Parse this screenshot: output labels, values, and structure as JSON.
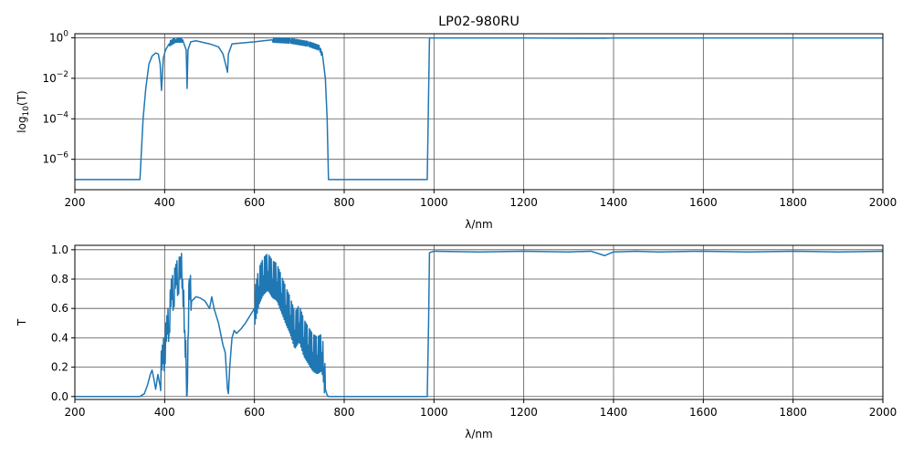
{
  "title": "LP02-980RU",
  "colors": {
    "series": "#1f77b4",
    "grid": "#555555",
    "axes": "#000000"
  },
  "chart_data": [
    {
      "type": "line",
      "title": "LP02-980RU",
      "xlabel": "λ/nm",
      "ylabel_parts": {
        "base": "log",
        "sub": "10",
        "arg": "(T)"
      },
      "yscale": "log",
      "xlim": [
        200,
        2000
      ],
      "ylim_log10": [
        -7.5,
        0.2
      ],
      "xticks": [
        200,
        400,
        600,
        800,
        1000,
        1200,
        1400,
        1600,
        1800,
        2000
      ],
      "yticks_log10": [
        -6,
        -4,
        -2,
        0
      ],
      "ytick_labels": [
        {
          "base": "10",
          "exp": "−6"
        },
        {
          "base": "10",
          "exp": "−4"
        },
        {
          "base": "10",
          "exp": "−2"
        },
        {
          "base": "10",
          "exp": "0"
        }
      ],
      "grid": true,
      "legend": "none",
      "series": [
        {
          "name": "",
          "x": [
            200,
            345,
            352,
            358,
            365,
            372,
            380,
            386,
            390,
            393,
            397,
            402,
            410,
            425,
            440,
            448,
            450,
            452,
            458,
            470,
            480,
            500,
            520,
            530,
            538,
            540,
            542,
            550,
            600,
            640,
            680,
            720,
            745,
            752,
            758,
            762,
            765,
            770,
            985,
            990,
            1000,
            1200,
            1380,
            1400,
            1600,
            1800,
            2000
          ],
          "y_log10": [
            -7,
            -7,
            -4,
            -2.5,
            -1.3,
            -0.9,
            -0.75,
            -0.8,
            -1.3,
            -2.6,
            -1.0,
            -0.6,
            -0.3,
            -0.1,
            -0.1,
            -0.6,
            -2.5,
            -0.6,
            -0.2,
            -0.15,
            -0.2,
            -0.3,
            -0.45,
            -0.8,
            -1.5,
            -1.7,
            -0.8,
            -0.3,
            -0.2,
            -0.1,
            -0.15,
            -0.3,
            -0.5,
            -0.9,
            -2.0,
            -4.0,
            -7,
            -7,
            -7,
            0,
            -0.01,
            -0.01,
            -0.02,
            -0.01,
            -0.01,
            -0.01,
            -0.01
          ]
        }
      ]
    },
    {
      "type": "line",
      "xlabel": "λ/nm",
      "ylabel": "T",
      "yscale": "linear",
      "xlim": [
        200,
        2000
      ],
      "ylim": [
        -0.02,
        1.03
      ],
      "xticks": [
        200,
        400,
        600,
        800,
        1000,
        1200,
        1400,
        1600,
        1800,
        2000
      ],
      "yticks": [
        0.0,
        0.2,
        0.4,
        0.6,
        0.8,
        1.0
      ],
      "ytick_labels": [
        "0.0",
        "0.2",
        "0.4",
        "0.6",
        "0.8",
        "1.0"
      ],
      "grid": true,
      "legend": "none",
      "series": [
        {
          "name": "",
          "x": [
            200,
            345,
            355,
            362,
            368,
            372,
            376,
            380,
            385,
            390,
            395,
            400,
            405,
            410,
            415,
            420,
            425,
            430,
            435,
            440,
            445,
            448,
            450,
            452,
            455,
            460,
            470,
            480,
            490,
            500,
            505,
            510,
            520,
            530,
            535,
            540,
            542,
            545,
            550,
            555,
            560,
            570,
            580,
            590,
            600,
            610,
            620,
            630,
            640,
            650,
            660,
            670,
            680,
            690,
            700,
            710,
            720,
            730,
            740,
            750,
            755,
            758,
            762,
            765,
            770,
            985,
            988,
            990,
            1000,
            1100,
            1200,
            1300,
            1350,
            1380,
            1400,
            1450,
            1500,
            1600,
            1700,
            1800,
            1900,
            2000
          ],
          "y": [
            0,
            0,
            0.02,
            0.08,
            0.15,
            0.18,
            0.12,
            0.05,
            0.15,
            0.07,
            0.35,
            0.25,
            0.55,
            0.45,
            0.8,
            0.65,
            0.9,
            0.75,
            0.95,
            0.8,
            0.45,
            0.2,
            0.01,
            0.4,
            0.8,
            0.65,
            0.68,
            0.67,
            0.65,
            0.6,
            0.68,
            0.6,
            0.5,
            0.35,
            0.3,
            0.05,
            0.02,
            0.2,
            0.4,
            0.45,
            0.43,
            0.46,
            0.5,
            0.55,
            0.6,
            0.75,
            0.82,
            0.85,
            0.8,
            0.78,
            0.7,
            0.62,
            0.55,
            0.45,
            0.5,
            0.4,
            0.35,
            0.3,
            0.28,
            0.3,
            0.2,
            0.05,
            0.01,
            0,
            0,
            0,
            0.5,
            0.98,
            0.99,
            0.985,
            0.99,
            0.985,
            0.99,
            0.96,
            0.985,
            0.99,
            0.985,
            0.99,
            0.985,
            0.99,
            0.985,
            0.99
          ]
        }
      ],
      "oscillation_band": {
        "x_range": [
          390,
          460
        ],
        "amplitude": 0.2,
        "x_range2": [
          600,
          760
        ],
        "amplitude2": 0.25
      }
    }
  ]
}
